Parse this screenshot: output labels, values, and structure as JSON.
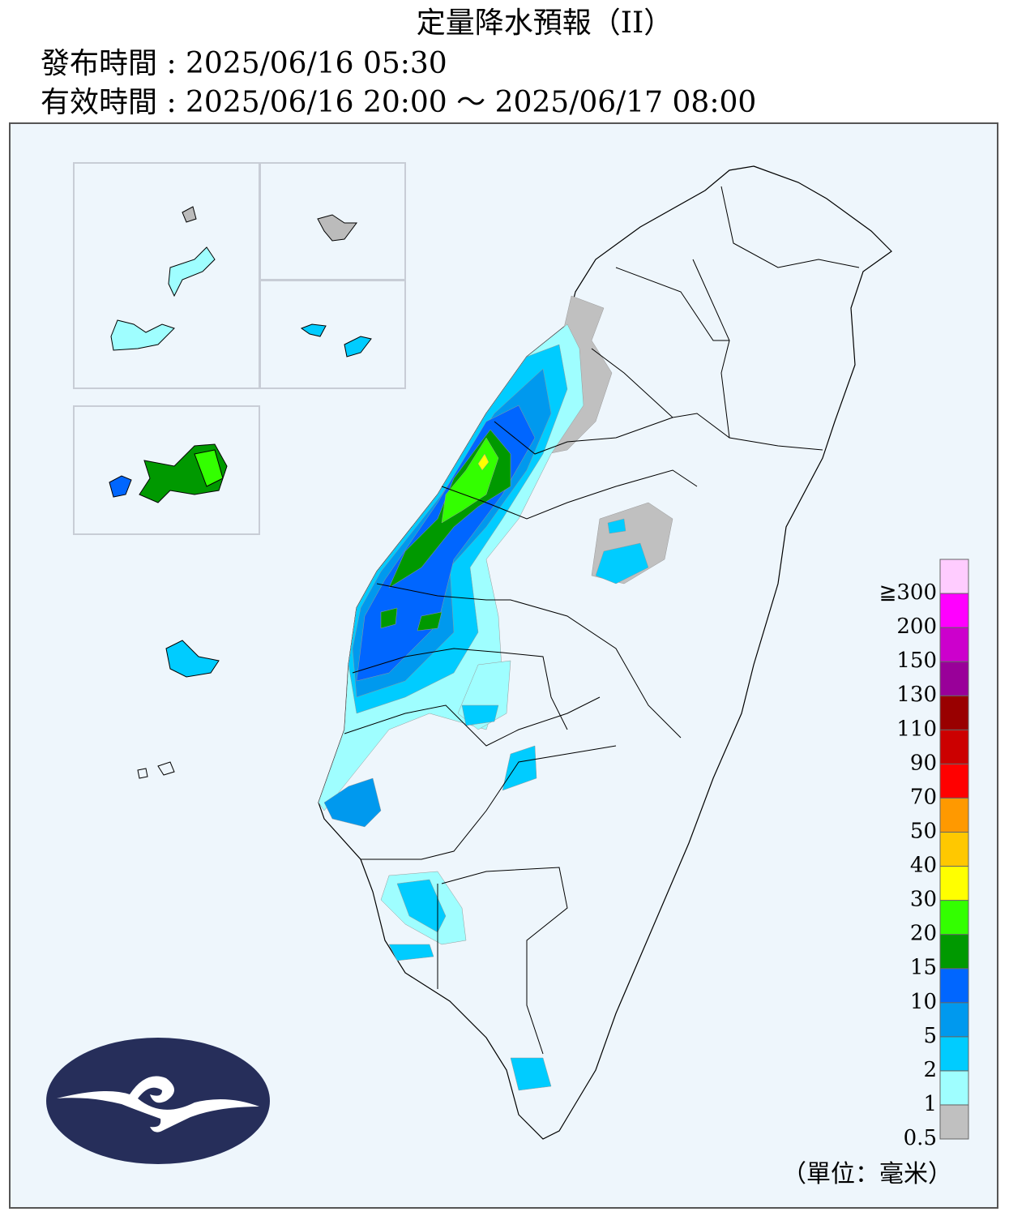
{
  "header": {
    "title": "定量降水預報（II）",
    "issued": "發布時間 : 2025/06/16 05:30",
    "valid": "有效時間 : 2025/06/16 20:00 ～ 2025/06/17 08:00"
  },
  "legend": {
    "labels": [
      "0.5",
      "1",
      "2",
      "5",
      "10",
      "15",
      "20",
      "30",
      "40",
      "50",
      "70",
      "90",
      "110",
      "130",
      "150",
      "200",
      "≧300"
    ],
    "colors": [
      "#c0c0c0",
      "#9ffeff",
      "#00ccff",
      "#0099ee",
      "#0066ff",
      "#009900",
      "#33ff00",
      "#ffff00",
      "#ffc800",
      "#ff9900",
      "#ff0000",
      "#cc0000",
      "#990000",
      "#990099",
      "#cc00cc",
      "#ff00ff",
      "#ffccff"
    ],
    "unit": "（單位：毫米）"
  }
}
